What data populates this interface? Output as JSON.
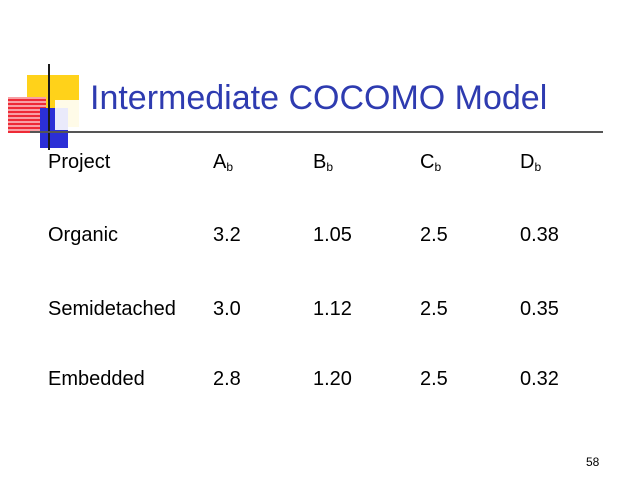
{
  "slide": {
    "title": "Intermediate COCOMO Model",
    "page_number": "58"
  },
  "table": {
    "headers": [
      {
        "main": "Project",
        "sub": ""
      },
      {
        "main": "A",
        "sub": "b"
      },
      {
        "main": "B",
        "sub": "b"
      },
      {
        "main": "C",
        "sub": "b"
      },
      {
        "main": "D",
        "sub": "b"
      }
    ],
    "rows": [
      [
        "Organic",
        "3.2",
        "1.05",
        "2.5",
        "0.38"
      ],
      [
        "Semidetached",
        "3.0",
        "1.12",
        "2.5",
        "0.35"
      ],
      [
        "Embedded",
        "2.8",
        "1.20",
        "2.5",
        "0.32"
      ]
    ]
  }
}
